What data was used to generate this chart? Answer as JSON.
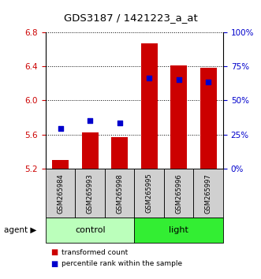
{
  "title": "GDS3187 / 1421223_a_at",
  "samples": [
    "GSM265984",
    "GSM265993",
    "GSM265998",
    "GSM265995",
    "GSM265996",
    "GSM265997"
  ],
  "bar_values": [
    5.3,
    5.63,
    5.57,
    6.67,
    6.41,
    6.38
  ],
  "percentile_values": [
    5.67,
    5.76,
    5.74,
    6.26,
    6.24,
    6.22
  ],
  "bar_bottom": 5.2,
  "bar_color": "#cc0000",
  "percentile_color": "#0000cc",
  "left_ylim": [
    5.2,
    6.8
  ],
  "left_yticks": [
    5.2,
    5.6,
    6.0,
    6.4,
    6.8
  ],
  "right_ytick_labels": [
    "0%",
    "25%",
    "50%",
    "75%",
    "100%"
  ],
  "right_ytick_vals": [
    0,
    25,
    50,
    75,
    100
  ],
  "groups": [
    {
      "label": "control",
      "indices": [
        0,
        1,
        2
      ],
      "color": "#bbffbb"
    },
    {
      "label": "light",
      "indices": [
        3,
        4,
        5
      ],
      "color": "#33ee33"
    }
  ],
  "legend_bar_label": "transformed count",
  "legend_percentile_label": "percentile rank within the sample",
  "sample_box_color": "#d0d0d0"
}
